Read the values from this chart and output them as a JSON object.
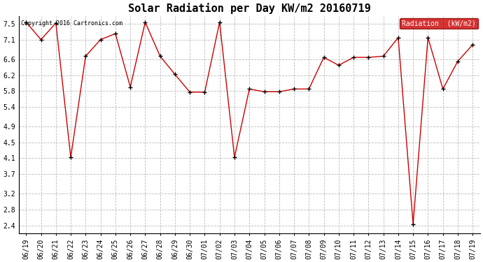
{
  "title": "Solar Radiation per Day KW/m2 20160719",
  "copyright_text": "Copyright 2016 Cartronics.com",
  "legend_label": "Radiation  (kW/m2)",
  "dates": [
    "06/19",
    "06/20",
    "06/21",
    "06/22",
    "06/23",
    "06/24",
    "06/25",
    "06/26",
    "06/27",
    "06/28",
    "06/29",
    "06/30",
    "07/01",
    "07/02",
    "07/03",
    "07/04",
    "07/05",
    "07/06",
    "07/07",
    "07/08",
    "07/09",
    "07/10",
    "07/11",
    "07/12",
    "07/13",
    "07/14",
    "07/15",
    "07/16",
    "07/17",
    "07/18",
    "07/19"
  ],
  "values": [
    7.54,
    7.1,
    7.52,
    4.12,
    6.68,
    7.1,
    7.25,
    5.9,
    7.54,
    6.68,
    6.22,
    5.77,
    5.77,
    7.54,
    4.12,
    5.85,
    5.78,
    5.78,
    5.85,
    5.85,
    6.65,
    6.45,
    6.65,
    6.65,
    6.68,
    7.15,
    2.43,
    7.15,
    5.85,
    6.55,
    6.97
  ],
  "line_color": "#cc0000",
  "marker_color": "#000000",
  "bg_color": "#ffffff",
  "plot_bg_color": "#ffffff",
  "grid_color": "#bbbbbb",
  "title_fontsize": 11,
  "tick_fontsize": 7,
  "yticks": [
    2.4,
    2.8,
    3.2,
    3.7,
    4.1,
    4.5,
    4.9,
    5.4,
    5.8,
    6.2,
    6.6,
    7.1,
    7.5
  ],
  "ylim": [
    2.2,
    7.7
  ],
  "legend_bg": "#cc0000",
  "legend_text_color": "#ffffff"
}
